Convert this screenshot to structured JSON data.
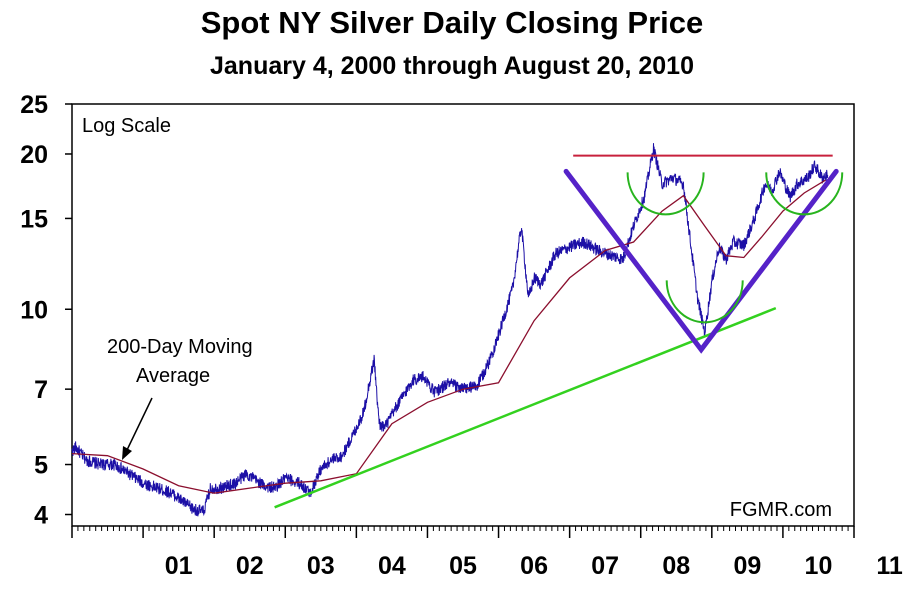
{
  "title": "Spot NY Silver Daily Closing Price",
  "subtitle": "January 4, 2000 through August 20, 2010",
  "scale_note": "Log Scale",
  "ma_annotation": [
    "200-Day Moving",
    "Average"
  ],
  "source_label": "FGMR.com",
  "colors": {
    "price": "#1c0fa6",
    "moving_average": "#8b0f2e",
    "trendline": "#33d11f",
    "v_pattern": "#5522c8",
    "resistance": "#c8203c",
    "arcs": "#28b41e"
  },
  "chart_data": {
    "type": "line",
    "yscale": "log",
    "ylim": [
      3.8,
      25
    ],
    "xlim": [
      2000.0,
      2011.0
    ],
    "y_ticks": [
      4,
      5,
      7,
      10,
      15,
      20,
      25
    ],
    "x_tick_labels": [
      "01",
      "02",
      "03",
      "04",
      "05",
      "06",
      "07",
      "08",
      "09",
      "10",
      "11"
    ],
    "x_tick_positions": [
      2001,
      2002,
      2003,
      2004,
      2005,
      2006,
      2007,
      2008,
      2009,
      2010,
      2011
    ],
    "grid": false,
    "series": [
      {
        "name": "",
        "role": "price",
        "points": [
          [
            2000.0,
            5.3
          ],
          [
            2000.05,
            5.4
          ],
          [
            2000.1,
            5.3
          ],
          [
            2000.2,
            5.1
          ],
          [
            2000.4,
            5.0
          ],
          [
            2000.6,
            5.0
          ],
          [
            2000.8,
            4.8
          ],
          [
            2001.0,
            4.6
          ],
          [
            2001.2,
            4.5
          ],
          [
            2001.4,
            4.4
          ],
          [
            2001.5,
            4.3
          ],
          [
            2001.7,
            4.1
          ],
          [
            2001.85,
            4.05
          ],
          [
            2001.95,
            4.5
          ],
          [
            2002.1,
            4.5
          ],
          [
            2002.3,
            4.6
          ],
          [
            2002.45,
            4.8
          ],
          [
            2002.55,
            4.7
          ],
          [
            2002.7,
            4.55
          ],
          [
            2002.85,
            4.5
          ],
          [
            2003.0,
            4.7
          ],
          [
            2003.2,
            4.6
          ],
          [
            2003.35,
            4.4
          ],
          [
            2003.5,
            4.9
          ],
          [
            2003.65,
            5.1
          ],
          [
            2003.8,
            5.2
          ],
          [
            2003.95,
            5.7
          ],
          [
            2004.1,
            6.3
          ],
          [
            2004.25,
            8.0
          ],
          [
            2004.32,
            6.0
          ],
          [
            2004.4,
            5.9
          ],
          [
            2004.6,
            6.6
          ],
          [
            2004.8,
            7.3
          ],
          [
            2004.95,
            7.4
          ],
          [
            2005.1,
            6.9
          ],
          [
            2005.3,
            7.2
          ],
          [
            2005.5,
            7.0
          ],
          [
            2005.7,
            7.1
          ],
          [
            2005.85,
            7.8
          ],
          [
            2006.0,
            8.9
          ],
          [
            2006.2,
            11.0
          ],
          [
            2006.32,
            14.5
          ],
          [
            2006.42,
            10.5
          ],
          [
            2006.5,
            11.5
          ],
          [
            2006.6,
            11.2
          ],
          [
            2006.8,
            12.8
          ],
          [
            2007.0,
            13.2
          ],
          [
            2007.2,
            13.5
          ],
          [
            2007.4,
            13.0
          ],
          [
            2007.6,
            12.7
          ],
          [
            2007.75,
            12.5
          ],
          [
            2007.9,
            14.5
          ],
          [
            2008.05,
            16.5
          ],
          [
            2008.18,
            20.5
          ],
          [
            2008.3,
            17.5
          ],
          [
            2008.45,
            18.0
          ],
          [
            2008.6,
            17.5
          ],
          [
            2008.7,
            13.5
          ],
          [
            2008.8,
            10.5
          ],
          [
            2008.9,
            9.0
          ],
          [
            2009.0,
            11.3
          ],
          [
            2009.1,
            13.2
          ],
          [
            2009.2,
            12.5
          ],
          [
            2009.3,
            13.5
          ],
          [
            2009.45,
            13.3
          ],
          [
            2009.6,
            15.0
          ],
          [
            2009.75,
            17.5
          ],
          [
            2009.85,
            17.0
          ],
          [
            2009.95,
            18.5
          ],
          [
            2010.1,
            16.5
          ],
          [
            2010.2,
            17.5
          ],
          [
            2010.35,
            18.0
          ],
          [
            2010.45,
            19.0
          ],
          [
            2010.55,
            18.0
          ],
          [
            2010.63,
            18.2
          ]
        ]
      },
      {
        "name": "200-Day Moving Average",
        "role": "moving_average",
        "points": [
          [
            2000.0,
            5.25
          ],
          [
            2000.5,
            5.2
          ],
          [
            2001.0,
            4.9
          ],
          [
            2001.5,
            4.55
          ],
          [
            2002.0,
            4.4
          ],
          [
            2002.5,
            4.5
          ],
          [
            2003.0,
            4.6
          ],
          [
            2003.5,
            4.65
          ],
          [
            2004.0,
            4.8
          ],
          [
            2004.5,
            6.0
          ],
          [
            2005.0,
            6.6
          ],
          [
            2005.5,
            7.0
          ],
          [
            2006.0,
            7.2
          ],
          [
            2006.5,
            9.5
          ],
          [
            2007.0,
            11.5
          ],
          [
            2007.5,
            13.0
          ],
          [
            2007.9,
            13.5
          ],
          [
            2008.3,
            15.5
          ],
          [
            2008.6,
            16.6
          ],
          [
            2008.9,
            14.5
          ],
          [
            2009.2,
            12.7
          ],
          [
            2009.45,
            12.6
          ],
          [
            2009.7,
            13.8
          ],
          [
            2010.0,
            15.5
          ],
          [
            2010.3,
            16.8
          ],
          [
            2010.6,
            17.8
          ]
        ]
      }
    ],
    "annotations": {
      "trendline": [
        [
          2002.85,
          4.13
        ],
        [
          2009.9,
          10.05
        ]
      ],
      "resistance": [
        [
          2007.05,
          19.85
        ],
        [
          2010.7,
          19.85
        ]
      ],
      "v_pattern": [
        [
          2006.95,
          18.5
        ],
        [
          2008.85,
          8.35
        ],
        [
          2010.75,
          18.5
        ]
      ],
      "arcs": [
        {
          "center": [
            2008.35,
            17.0
          ],
          "direction": "down"
        },
        {
          "center": [
            2008.9,
            10.5
          ],
          "direction": "down"
        },
        {
          "center": [
            2010.3,
            17.0
          ],
          "direction": "down"
        }
      ]
    }
  }
}
